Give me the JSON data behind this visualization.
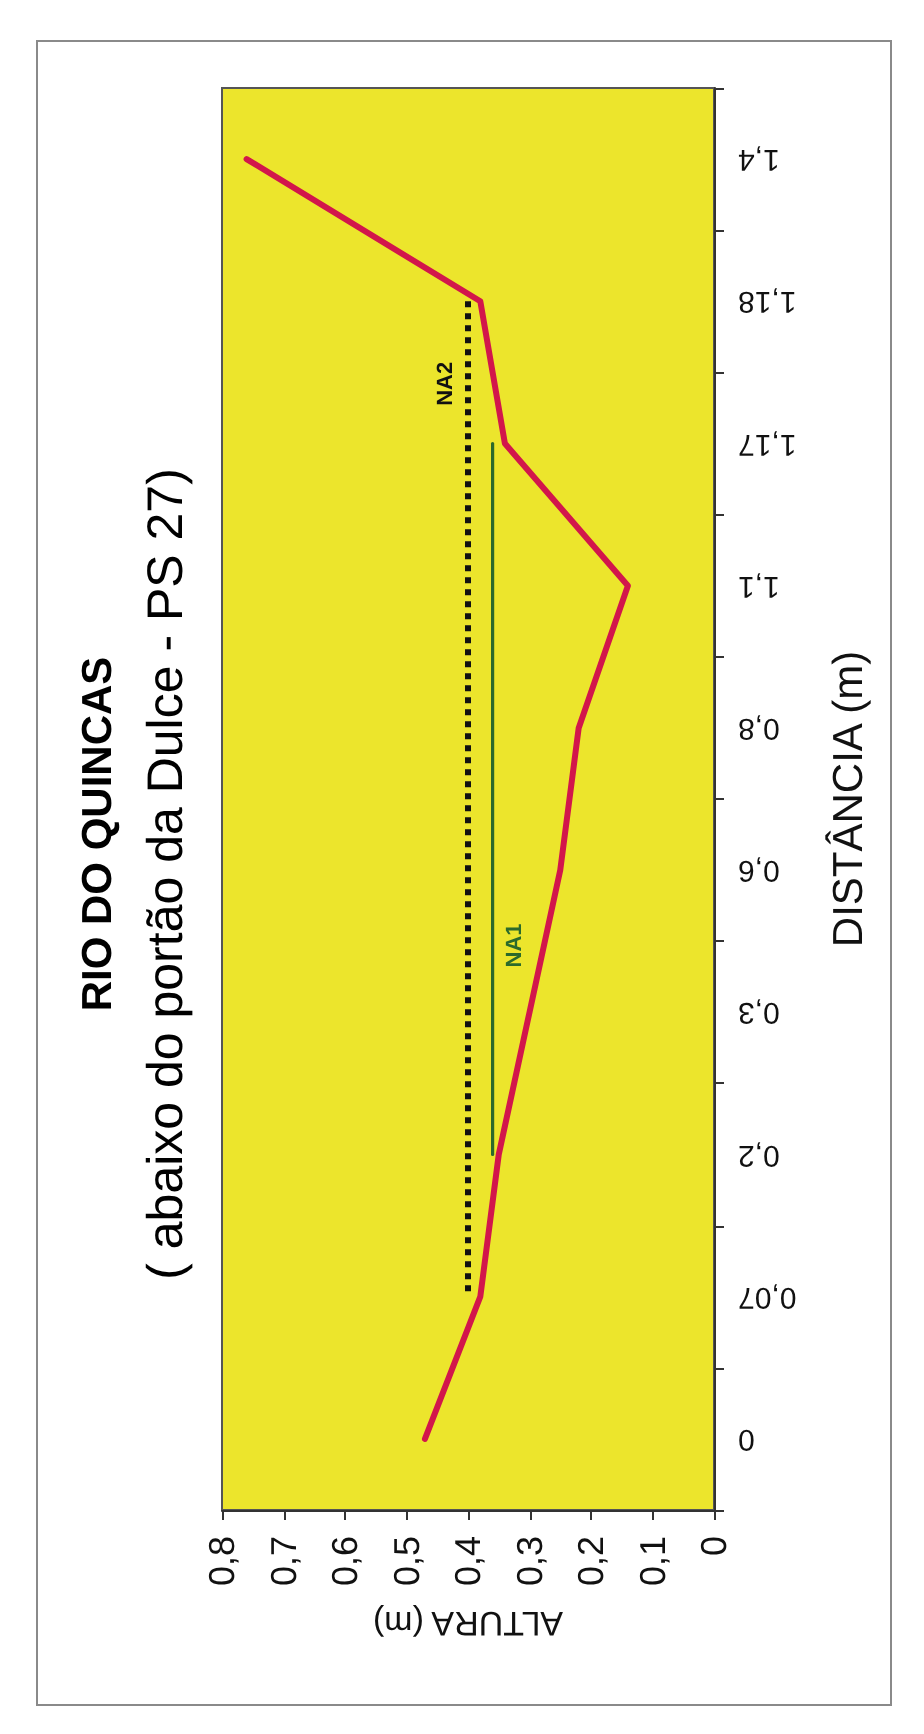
{
  "chart_data": {
    "type": "line",
    "orientation": "horizontal",
    "title": "RIO DO QUINCAS",
    "subtitle": "( abaixo do portão da Dulce - PS 27)",
    "xlabel": "ALTURA (m)",
    "ylabel": "DISTÂNCIA (m)",
    "categories": [
      "1,4",
      "1,18",
      "1,17",
      "1,1",
      "0,8",
      "0,6",
      "0,3",
      "0,2",
      "0,07",
      "0"
    ],
    "series": [
      {
        "color": "#d2164b",
        "values": [
          0.76,
          0.38,
          0.34,
          0.14,
          0.22,
          0.25,
          0.3,
          0.35,
          0.38,
          0.47
        ]
      },
      {
        "name": "NA2",
        "color": "#111111",
        "line_style": "dotted",
        "values": [
          null,
          0.4,
          0.4,
          0.4,
          0.4,
          0.4,
          0.4,
          0.4,
          0.4,
          null
        ]
      },
      {
        "name": "NA1",
        "color": "#2b6a2b",
        "values": [
          null,
          null,
          0.36,
          0.36,
          0.36,
          0.36,
          0.36,
          0.36,
          null,
          null
        ]
      }
    ],
    "xlim": [
      0.8,
      0
    ],
    "xticks": [
      {
        "value": 0.8,
        "label": "0,8"
      },
      {
        "value": 0.7,
        "label": "0,7"
      },
      {
        "value": 0.6,
        "label": "0,6"
      },
      {
        "value": 0.5,
        "label": "0,5"
      },
      {
        "value": 0.4,
        "label": "0,4"
      },
      {
        "value": 0.3,
        "label": "0,3"
      },
      {
        "value": 0.2,
        "label": "0,2"
      },
      {
        "value": 0.1,
        "label": "0,1"
      },
      0
    ],
    "line_style": "solid"
  }
}
